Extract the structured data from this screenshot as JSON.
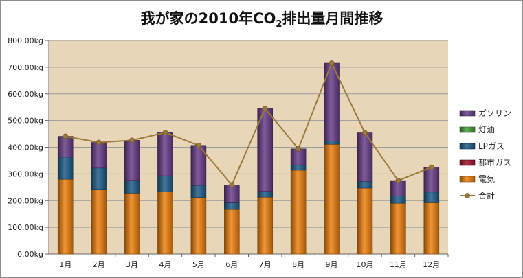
{
  "chart_data": {
    "type": "bar",
    "stacked": true,
    "title": {
      "prefix": "我が家の2010年CO",
      "subscript": "2",
      "suffix": "排出量月間推移"
    },
    "categories": [
      "1月",
      "2月",
      "3月",
      "4月",
      "5月",
      "6月",
      "7月",
      "8月",
      "9月",
      "10月",
      "11月",
      "12月"
    ],
    "series": [
      {
        "name": "電気",
        "color": "#f0820f",
        "values": [
          280,
          240,
          228,
          233,
          212,
          167,
          213,
          314,
          411,
          247,
          190,
          192
        ]
      },
      {
        "name": "都市ガス",
        "color": "#a3122e",
        "values": [
          0,
          0,
          0,
          0,
          0,
          0,
          0,
          0,
          0,
          0,
          0,
          0
        ]
      },
      {
        "name": "LPガス",
        "color": "#1f5f8c",
        "values": [
          83,
          82,
          48,
          60,
          45,
          25,
          22,
          20,
          12,
          25,
          28,
          40
        ]
      },
      {
        "name": "灯油",
        "color": "#4a9e3a",
        "values": [
          0,
          0,
          0,
          0,
          0,
          0,
          0,
          0,
          0,
          0,
          0,
          0
        ]
      },
      {
        "name": "ガソリン",
        "color": "#6a3f8a",
        "values": [
          78,
          96,
          150,
          162,
          150,
          67,
          310,
          60,
          292,
          182,
          57,
          93
        ]
      }
    ],
    "line_series": {
      "name": "合計",
      "color": "#9c7a3a",
      "values": [
        441,
        418,
        426,
        455,
        407,
        259,
        545,
        394,
        715,
        454,
        275,
        325
      ]
    },
    "y_tick_labels": [
      "0.00kg",
      "100.00kg",
      "200.00kg",
      "300.00kg",
      "400.00kg",
      "500.00kg",
      "600.00kg",
      "700.00kg",
      "800.00kg"
    ],
    "ylim": [
      0,
      800
    ],
    "y_step": 100,
    "grid": true,
    "legend_position": "right",
    "legend_order": [
      "ガソリン",
      "灯油",
      "LPガス",
      "都市ガス",
      "電気",
      "合計"
    ],
    "plot_background": "#e7d6b8",
    "gridline_color": "#9a9a9a"
  }
}
